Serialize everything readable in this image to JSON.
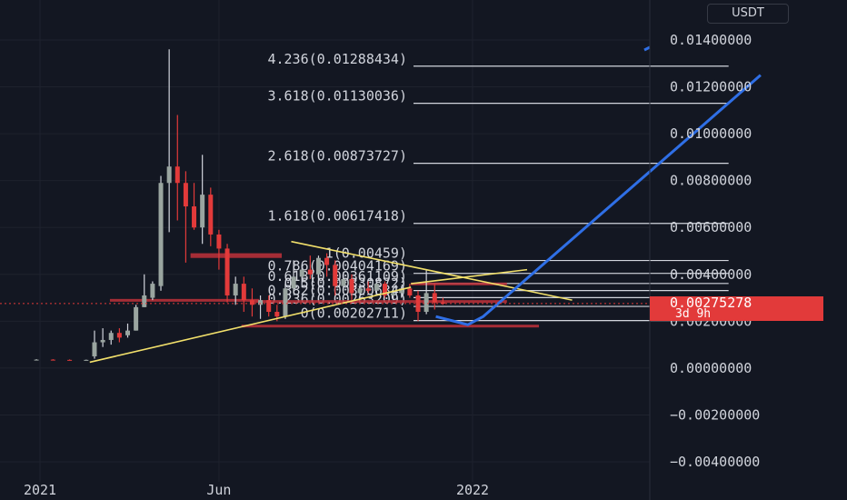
{
  "unit_label": "USDT",
  "last_price": {
    "value": "0.00275278",
    "countdown": "3d 9h",
    "color": "#e23a3a"
  },
  "colors": {
    "background": "#131722",
    "up": "#9aa5a0",
    "down": "#e23a3a",
    "trendline": "#f2e06b",
    "projection": "#2f6fe6",
    "fib_level": "#d1d4dc",
    "box": "#c0313a",
    "text": "#d1d4dc"
  },
  "chart_data": {
    "type": "candlestick",
    "y_axis": {
      "min": -0.004,
      "max": 0.014,
      "ticks": [
        "0.01400000",
        "0.01200000",
        "0.01000000",
        "0.00800000",
        "0.00600000",
        "0.00400000",
        "0.00200000",
        "0.00000000",
        "−0.00200000",
        "−0.00400000"
      ],
      "tick_values": [
        0.014,
        0.012,
        0.01,
        0.008,
        0.006,
        0.004,
        0.002,
        0.0,
        -0.002,
        -0.004
      ]
    },
    "x_axis": {
      "ticks": [
        "2021",
        "Jun",
        "2022"
      ],
      "tick_dates": [
        "2021-01-01",
        "2021-06-01",
        "2022-01-01"
      ],
      "range": [
        "2020-12-22",
        "2022-09-01"
      ]
    },
    "candles": [
      {
        "date": "2020-12-29",
        "open": 0.00035,
        "high": 0.00038,
        "low": 0.00033,
        "close": 0.00036
      },
      {
        "date": "2021-01-12",
        "open": 0.00036,
        "high": 0.00038,
        "low": 0.00034,
        "close": 0.00035
      },
      {
        "date": "2021-01-26",
        "open": 0.00035,
        "high": 0.00037,
        "low": 0.00033,
        "close": 0.00034
      },
      {
        "date": "2021-02-09",
        "open": 0.00034,
        "high": 0.00036,
        "low": 0.00032,
        "close": 0.00035
      },
      {
        "date": "2021-02-16",
        "open": 0.0005,
        "high": 0.0016,
        "low": 0.0004,
        "close": 0.0011
      },
      {
        "date": "2021-02-23",
        "open": 0.0011,
        "high": 0.0017,
        "low": 0.0009,
        "close": 0.0012
      },
      {
        "date": "2021-03-02",
        "open": 0.0012,
        "high": 0.0016,
        "low": 0.001,
        "close": 0.0015
      },
      {
        "date": "2021-03-09",
        "open": 0.0015,
        "high": 0.0017,
        "low": 0.0011,
        "close": 0.0013
      },
      {
        "date": "2021-03-16",
        "open": 0.0014,
        "high": 0.0019,
        "low": 0.0013,
        "close": 0.0016
      },
      {
        "date": "2021-03-23",
        "open": 0.0016,
        "high": 0.0027,
        "low": 0.0016,
        "close": 0.0026
      },
      {
        "date": "2021-03-30",
        "open": 0.0026,
        "high": 0.004,
        "low": 0.0026,
        "close": 0.0031
      },
      {
        "date": "2021-04-06",
        "open": 0.003,
        "high": 0.0037,
        "low": 0.0029,
        "close": 0.0036
      },
      {
        "date": "2021-04-13",
        "open": 0.0035,
        "high": 0.0082,
        "low": 0.0033,
        "close": 0.0079
      },
      {
        "date": "2021-04-20",
        "open": 0.0079,
        "high": 0.0136,
        "low": 0.0058,
        "close": 0.0086
      },
      {
        "date": "2021-04-27",
        "open": 0.0086,
        "high": 0.0108,
        "low": 0.0063,
        "close": 0.0079
      },
      {
        "date": "2021-05-04",
        "open": 0.0079,
        "high": 0.0084,
        "low": 0.0045,
        "close": 0.0069
      },
      {
        "date": "2021-05-11",
        "open": 0.0069,
        "high": 0.0079,
        "low": 0.0059,
        "close": 0.006
      },
      {
        "date": "2021-05-18",
        "open": 0.006,
        "high": 0.0091,
        "low": 0.0053,
        "close": 0.0074
      },
      {
        "date": "2021-05-25",
        "open": 0.0074,
        "high": 0.0077,
        "low": 0.0052,
        "close": 0.0057
      },
      {
        "date": "2021-06-01",
        "open": 0.0057,
        "high": 0.0059,
        "low": 0.0042,
        "close": 0.0051
      },
      {
        "date": "2021-06-08",
        "open": 0.0051,
        "high": 0.0053,
        "low": 0.0028,
        "close": 0.0031
      },
      {
        "date": "2021-06-15",
        "open": 0.0031,
        "high": 0.0039,
        "low": 0.0027,
        "close": 0.0036
      },
      {
        "date": "2021-06-22",
        "open": 0.0036,
        "high": 0.0039,
        "low": 0.0024,
        "close": 0.0029
      },
      {
        "date": "2021-06-29",
        "open": 0.0029,
        "high": 0.0034,
        "low": 0.0022,
        "close": 0.0027
      },
      {
        "date": "2021-07-06",
        "open": 0.0027,
        "high": 0.0031,
        "low": 0.0021,
        "close": 0.0029
      },
      {
        "date": "2021-07-13",
        "open": 0.0029,
        "high": 0.0031,
        "low": 0.0022,
        "close": 0.0024
      },
      {
        "date": "2021-07-20",
        "open": 0.0024,
        "high": 0.0027,
        "low": 0.002,
        "close": 0.0022
      },
      {
        "date": "2021-07-27",
        "open": 0.0022,
        "high": 0.0036,
        "low": 0.0021,
        "close": 0.0034
      },
      {
        "date": "2021-08-03",
        "open": 0.0034,
        "high": 0.0046,
        "low": 0.0032,
        "close": 0.0039
      },
      {
        "date": "2021-08-10",
        "open": 0.0039,
        "high": 0.0044,
        "low": 0.0035,
        "close": 0.0042
      },
      {
        "date": "2021-08-17",
        "open": 0.0042,
        "high": 0.0048,
        "low": 0.0038,
        "close": 0.004
      },
      {
        "date": "2021-08-24",
        "open": 0.004,
        "high": 0.0048,
        "low": 0.0036,
        "close": 0.0047
      },
      {
        "date": "2021-08-31",
        "open": 0.0047,
        "high": 0.0049,
        "low": 0.0039,
        "close": 0.0044
      },
      {
        "date": "2021-09-07",
        "open": 0.0044,
        "high": 0.0046,
        "low": 0.0031,
        "close": 0.0035
      },
      {
        "date": "2021-09-14",
        "open": 0.0035,
        "high": 0.0041,
        "low": 0.0033,
        "close": 0.0038
      },
      {
        "date": "2021-09-21",
        "open": 0.0038,
        "high": 0.004,
        "low": 0.0028,
        "close": 0.0032
      },
      {
        "date": "2021-09-28",
        "open": 0.0032,
        "high": 0.0036,
        "low": 0.003,
        "close": 0.0034
      },
      {
        "date": "2021-10-05",
        "open": 0.0034,
        "high": 0.0037,
        "low": 0.0032,
        "close": 0.0033
      },
      {
        "date": "2021-10-12",
        "open": 0.0033,
        "high": 0.0038,
        "low": 0.0031,
        "close": 0.0036
      },
      {
        "date": "2021-10-19",
        "open": 0.0036,
        "high": 0.0037,
        "low": 0.003,
        "close": 0.0031
      },
      {
        "date": "2021-10-26",
        "open": 0.0031,
        "high": 0.0034,
        "low": 0.0029,
        "close": 0.0032
      },
      {
        "date": "2021-11-02",
        "open": 0.0032,
        "high": 0.0035,
        "low": 0.003,
        "close": 0.0034
      },
      {
        "date": "2021-11-09",
        "open": 0.0034,
        "high": 0.0036,
        "low": 0.003,
        "close": 0.0031
      },
      {
        "date": "2021-11-16",
        "open": 0.0031,
        "high": 0.0033,
        "low": 0.002,
        "close": 0.0024
      },
      {
        "date": "2021-11-23",
        "open": 0.0024,
        "high": 0.0042,
        "low": 0.0023,
        "close": 0.0032
      },
      {
        "date": "2021-11-30",
        "open": 0.0032,
        "high": 0.0036,
        "low": 0.0025,
        "close": 0.0028
      },
      {
        "date": "2021-12-07",
        "open": 0.0028,
        "high": 0.003,
        "low": 0.0027,
        "close": 0.00275
      }
    ],
    "fib_levels": [
      {
        "label": "4.236(0.01288434)",
        "value": 0.01288434
      },
      {
        "label": "3.618(0.01130036)",
        "value": 0.01130036
      },
      {
        "label": "2.618(0.00873727)",
        "value": 0.00873727
      },
      {
        "label": "1.618(0.00617418)",
        "value": 0.00617418
      },
      {
        "label": "1(0.00459)",
        "value": 0.00459
      },
      {
        "label": "0.786(0.00404169)",
        "value": 0.00404169
      },
      {
        "label": "0.618(0.00361109)",
        "value": 0.00361109
      },
      {
        "label": "0.5(0.00330872)",
        "value": 0.00330872
      },
      {
        "label": "0.382(0.00300634)",
        "value": 0.00300634
      },
      {
        "label": "0.236(0.00263209)",
        "value": 0.00263209
      },
      {
        "label": "0(0.00202711)",
        "value": 0.00202711
      }
    ],
    "fib_range": {
      "start": "2021-06-15",
      "end": "2022-08-05"
    },
    "trendlines": [
      {
        "from": {
          "date": "2021-02-12",
          "value": 0.00025
        },
        "to": {
          "date": "2021-11-10",
          "value": 0.00345
        }
      },
      {
        "from": {
          "date": "2021-08-01",
          "value": 0.0054
        },
        "to": {
          "date": "2022-03-26",
          "value": 0.0029
        }
      },
      {
        "from": {
          "date": "2021-11-10",
          "value": 0.0036
        },
        "to": {
          "date": "2022-02-16",
          "value": 0.0042
        }
      }
    ],
    "projection": [
      {
        "date": "2021-12-01",
        "value": 0.0022
      },
      {
        "date": "2021-12-28",
        "value": 0.00185
      },
      {
        "date": "2022-01-10",
        "value": 0.0022
      },
      {
        "date": "2022-09-01",
        "value": 0.0125
      }
    ],
    "boxes": [
      {
        "from": "2021-05-08",
        "to": "2021-07-24",
        "low": 0.0047,
        "high": 0.0049
      },
      {
        "from": "2021-03-01",
        "to": "2021-07-05",
        "low": 0.0029,
        "high": 0.00295
      },
      {
        "from": "2021-07-01",
        "to": "2022-01-30",
        "low": 0.00285,
        "high": 0.0029
      },
      {
        "from": "2021-11-10",
        "to": "2022-01-30",
        "low": 0.0036,
        "high": 0.00365
      },
      {
        "from": "2021-06-20",
        "to": "2022-02-26",
        "low": 0.0018,
        "high": 0.00185
      }
    ],
    "current_price": 0.00275278
  }
}
